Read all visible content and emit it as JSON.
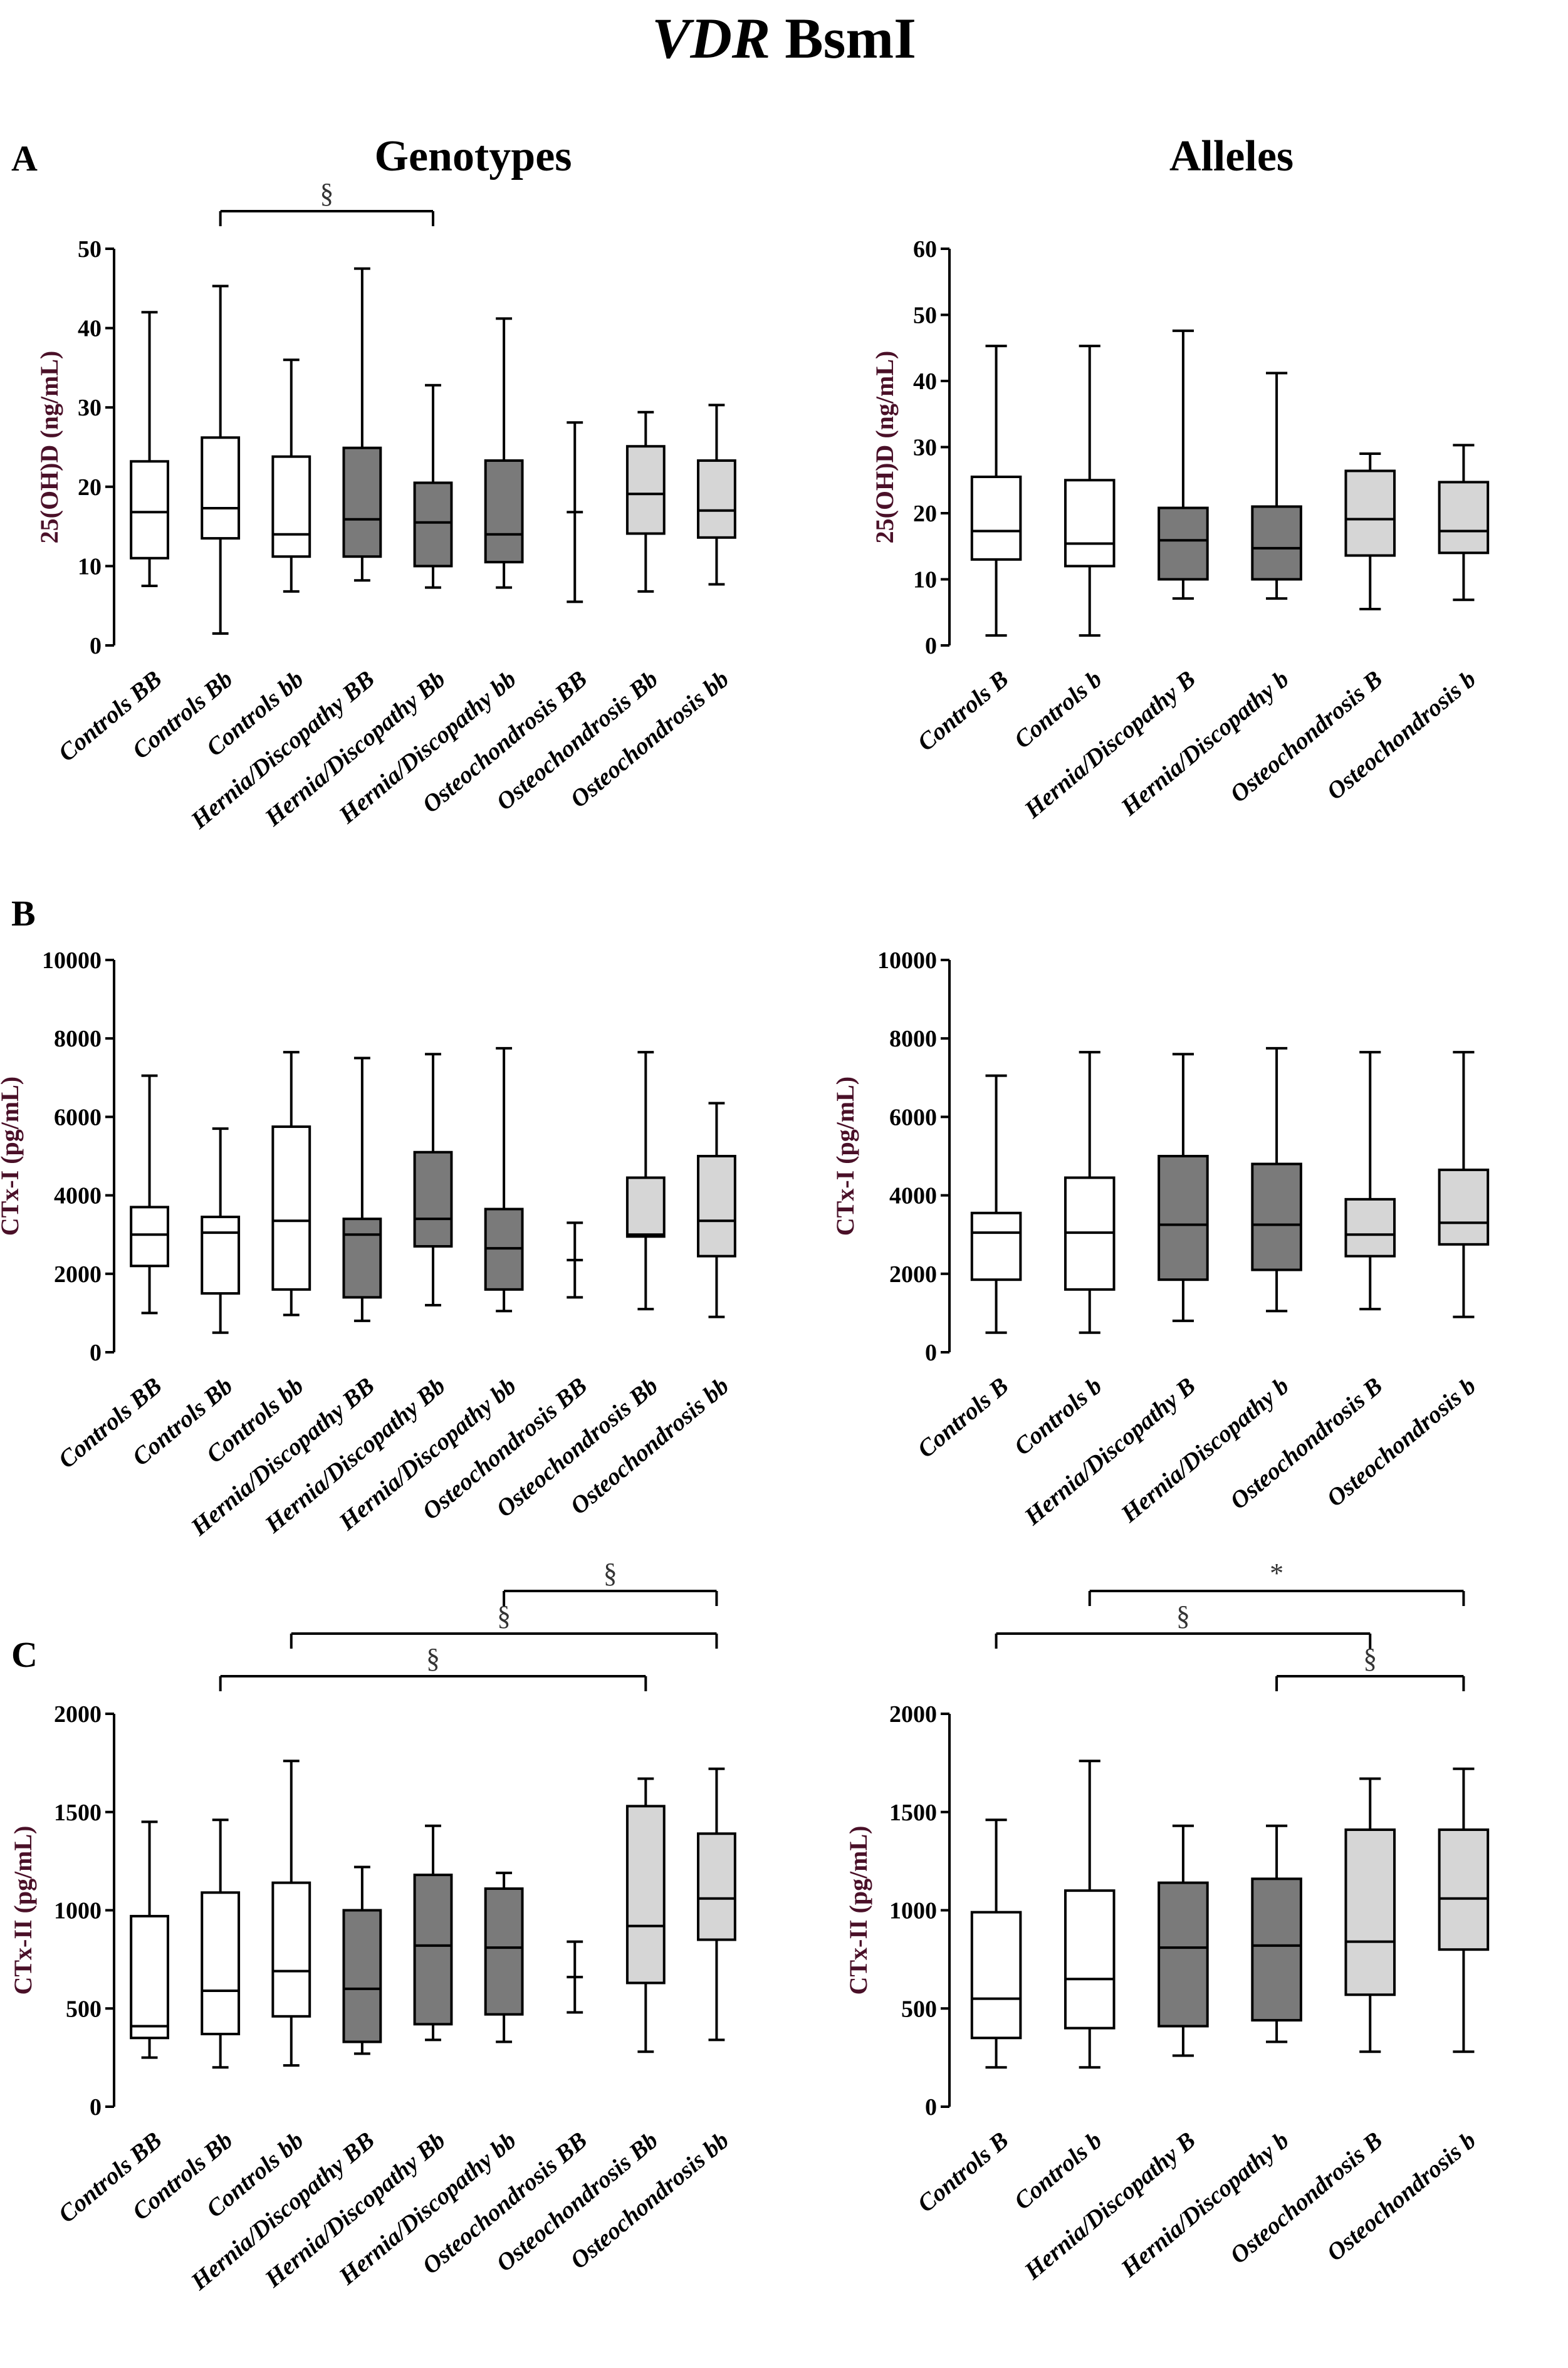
{
  "figure": {
    "title_gene": "VDR",
    "title_snp": "BsmI",
    "panel_labels": [
      "A",
      "B",
      "C"
    ],
    "column_titles": [
      "Genotypes",
      "Alleles"
    ]
  },
  "colors": {
    "control_fill": "#ffffff",
    "hernia_fill": "#7a7a7a",
    "osteo_fill": "#d6d6d6",
    "stroke": "#000000",
    "ylabel": "#4a1028",
    "significance": "#333333"
  },
  "chart_data": [
    {
      "id": "A-genotypes",
      "type": "boxplot",
      "row": 0,
      "col": 0,
      "ylabel": "25(OH)D (ng/mL)",
      "ylim": [
        0,
        50
      ],
      "yticks": [
        0,
        10,
        20,
        30,
        40,
        50
      ],
      "categories": [
        "Controls BB",
        "Controls Bb",
        "Controls bb",
        "Hernia/Discopathy BB",
        "Hernia/Discopathy Bb",
        "Hernia/Discopathy bb",
        "Osteochondrosis BB",
        "Osteochondrosis Bb",
        "Osteochondrosis bb"
      ],
      "groups": [
        "control",
        "control",
        "control",
        "hernia",
        "hernia",
        "hernia",
        "osteo",
        "osteo",
        "osteo"
      ],
      "boxes": [
        {
          "min": 7.5,
          "q1": 11,
          "median": 16.8,
          "q3": 23.2,
          "max": 42
        },
        {
          "min": 1.5,
          "q1": 13.5,
          "median": 17.3,
          "q3": 26.2,
          "max": 45.3
        },
        {
          "min": 6.8,
          "q1": 11.2,
          "median": 14,
          "q3": 23.8,
          "max": 36
        },
        {
          "min": 8.2,
          "q1": 11.2,
          "median": 15.9,
          "q3": 24.9,
          "max": 47.5
        },
        {
          "min": 7.3,
          "q1": 10,
          "median": 15.5,
          "q3": 20.5,
          "max": 32.8
        },
        {
          "min": 7.3,
          "q1": 10.5,
          "median": 14,
          "q3": 23.3,
          "max": 41.2
        },
        {
          "min": 5.5,
          "q1": 16.8,
          "median": 16.8,
          "q3": 16.8,
          "max": 28.1
        },
        {
          "min": 6.8,
          "q1": 14.1,
          "median": 19.1,
          "q3": 25.1,
          "max": 29.4
        },
        {
          "min": 7.7,
          "q1": 13.6,
          "median": 17,
          "q3": 23.3,
          "max": 30.3
        }
      ],
      "significance": [
        {
          "from": 1,
          "to": 4,
          "label": "§",
          "level": 0
        }
      ]
    },
    {
      "id": "A-alleles",
      "type": "boxplot",
      "row": 0,
      "col": 1,
      "ylabel": "25(OH)D (ng/mL)",
      "ylim": [
        0,
        60
      ],
      "yticks": [
        0,
        10,
        20,
        30,
        40,
        50,
        60
      ],
      "categories": [
        "Controls B",
        "Controls b",
        "Hernia/Discopathy B",
        "Hernia/Discopathy b",
        "Osteochondrosis B",
        "Osteochondrosis b"
      ],
      "groups": [
        "control",
        "control",
        "hernia",
        "hernia",
        "osteo",
        "osteo"
      ],
      "boxes": [
        {
          "min": 1.5,
          "q1": 13,
          "median": 17.3,
          "q3": 25.5,
          "max": 45.3
        },
        {
          "min": 1.5,
          "q1": 12,
          "median": 15.4,
          "q3": 25,
          "max": 45.3
        },
        {
          "min": 7.1,
          "q1": 10,
          "median": 15.9,
          "q3": 20.8,
          "max": 47.6
        },
        {
          "min": 7.1,
          "q1": 10,
          "median": 14.7,
          "q3": 21,
          "max": 41.2
        },
        {
          "min": 5.5,
          "q1": 13.6,
          "median": 19.1,
          "q3": 26.4,
          "max": 29
        },
        {
          "min": 6.9,
          "q1": 14,
          "median": 17.3,
          "q3": 24.7,
          "max": 30.3
        }
      ],
      "significance": []
    },
    {
      "id": "B-genotypes",
      "type": "boxplot",
      "row": 1,
      "col": 0,
      "ylabel": "CTx-I (pg/mL)",
      "ylim": [
        0,
        10000
      ],
      "yticks": [
        0,
        2000,
        4000,
        6000,
        8000,
        10000
      ],
      "categories": [
        "Controls BB",
        "Controls Bb",
        "Controls bb",
        "Hernia/Discopathy BB",
        "Hernia/Discopathy Bb",
        "Hernia/Discopathy bb",
        "Osteochondrosis BB",
        "Osteochondrosis Bb",
        "Osteochondrosis bb"
      ],
      "groups": [
        "control",
        "control",
        "control",
        "hernia",
        "hernia",
        "hernia",
        "osteo",
        "osteo",
        "osteo"
      ],
      "boxes": [
        {
          "min": 1000,
          "q1": 2200,
          "median": 3000,
          "q3": 3700,
          "max": 7050
        },
        {
          "min": 500,
          "q1": 1500,
          "median": 3050,
          "q3": 3450,
          "max": 5700
        },
        {
          "min": 950,
          "q1": 1600,
          "median": 3350,
          "q3": 5750,
          "max": 7650
        },
        {
          "min": 800,
          "q1": 1400,
          "median": 3000,
          "q3": 3400,
          "max": 7500
        },
        {
          "min": 1200,
          "q1": 2700,
          "median": 3400,
          "q3": 5100,
          "max": 7600
        },
        {
          "min": 1050,
          "q1": 1600,
          "median": 2650,
          "q3": 3650,
          "max": 7750
        },
        {
          "min": 1400,
          "q1": 2350,
          "median": 2350,
          "q3": 2350,
          "max": 3300
        },
        {
          "min": 1100,
          "q1": 2950,
          "median": 3000,
          "q3": 4450,
          "max": 7650
        },
        {
          "min": 900,
          "q1": 2450,
          "median": 3350,
          "q3": 5000,
          "max": 6350
        }
      ],
      "significance": []
    },
    {
      "id": "B-alleles",
      "type": "boxplot",
      "row": 1,
      "col": 1,
      "ylabel": "CTx-I (pg/mL)",
      "ylim": [
        0,
        10000
      ],
      "yticks": [
        0,
        2000,
        4000,
        6000,
        8000,
        10000
      ],
      "categories": [
        "Controls B",
        "Controls b",
        "Hernia/Discopathy B",
        "Hernia/Discopathy b",
        "Osteochondrosis B",
        "Osteochondrosis b"
      ],
      "groups": [
        "control",
        "control",
        "hernia",
        "hernia",
        "osteo",
        "osteo"
      ],
      "boxes": [
        {
          "min": 500,
          "q1": 1850,
          "median": 3050,
          "q3": 3550,
          "max": 7050
        },
        {
          "min": 500,
          "q1": 1600,
          "median": 3050,
          "q3": 4450,
          "max": 7650
        },
        {
          "min": 800,
          "q1": 1850,
          "median": 3250,
          "q3": 5000,
          "max": 7600
        },
        {
          "min": 1050,
          "q1": 2100,
          "median": 3250,
          "q3": 4800,
          "max": 7750
        },
        {
          "min": 1100,
          "q1": 2450,
          "median": 3000,
          "q3": 3900,
          "max": 7650
        },
        {
          "min": 900,
          "q1": 2750,
          "median": 3300,
          "q3": 4650,
          "max": 7650
        }
      ],
      "significance": []
    },
    {
      "id": "C-genotypes",
      "type": "boxplot",
      "row": 2,
      "col": 0,
      "ylabel": "CTx-II (pg/mL)",
      "ylim": [
        0,
        2000
      ],
      "yticks": [
        0,
        500,
        1000,
        1500,
        2000
      ],
      "categories": [
        "Controls BB",
        "Controls Bb",
        "Controls bb",
        "Hernia/Discopathy BB",
        "Hernia/Discopathy Bb",
        "Hernia/Discopathy bb",
        "Osteochondrosis BB",
        "Osteochondrosis Bb",
        "Osteochondrosis bb"
      ],
      "groups": [
        "control",
        "control",
        "control",
        "hernia",
        "hernia",
        "hernia",
        "osteo",
        "osteo",
        "osteo"
      ],
      "boxes": [
        {
          "min": 250,
          "q1": 350,
          "median": 410,
          "q3": 970,
          "max": 1450
        },
        {
          "min": 200,
          "q1": 370,
          "median": 590,
          "q3": 1090,
          "max": 1460
        },
        {
          "min": 210,
          "q1": 460,
          "median": 690,
          "q3": 1140,
          "max": 1760
        },
        {
          "min": 270,
          "q1": 330,
          "median": 600,
          "q3": 1000,
          "max": 1220
        },
        {
          "min": 340,
          "q1": 420,
          "median": 820,
          "q3": 1180,
          "max": 1430
        },
        {
          "min": 330,
          "q1": 470,
          "median": 810,
          "q3": 1110,
          "max": 1190
        },
        {
          "min": 480,
          "q1": 660,
          "median": 660,
          "q3": 660,
          "max": 840
        },
        {
          "min": 280,
          "q1": 630,
          "median": 920,
          "q3": 1530,
          "max": 1670
        },
        {
          "min": 340,
          "q1": 850,
          "median": 1060,
          "q3": 1390,
          "max": 1720
        }
      ],
      "significance": [
        {
          "from": 1,
          "to": 7,
          "label": "§",
          "level": 0
        },
        {
          "from": 2,
          "to": 8,
          "label": "§",
          "level": 1
        },
        {
          "from": 5,
          "to": 8,
          "label": "§",
          "level": 2
        }
      ]
    },
    {
      "id": "C-alleles",
      "type": "boxplot",
      "row": 2,
      "col": 1,
      "ylabel": "CTx-II (pg/mL)",
      "ylim": [
        0,
        2000
      ],
      "yticks": [
        0,
        500,
        1000,
        1500,
        2000
      ],
      "categories": [
        "Controls B",
        "Controls b",
        "Hernia/Discopathy B",
        "Hernia/Discopathy b",
        "Osteochondrosis B",
        "Osteochondrosis b"
      ],
      "groups": [
        "control",
        "control",
        "hernia",
        "hernia",
        "osteo",
        "osteo"
      ],
      "boxes": [
        {
          "min": 200,
          "q1": 350,
          "median": 550,
          "q3": 990,
          "max": 1460
        },
        {
          "min": 200,
          "q1": 400,
          "median": 650,
          "q3": 1100,
          "max": 1760
        },
        {
          "min": 260,
          "q1": 410,
          "median": 810,
          "q3": 1140,
          "max": 1430
        },
        {
          "min": 330,
          "q1": 440,
          "median": 820,
          "q3": 1160,
          "max": 1430
        },
        {
          "min": 280,
          "q1": 570,
          "median": 840,
          "q3": 1410,
          "max": 1670
        },
        {
          "min": 280,
          "q1": 800,
          "median": 1060,
          "q3": 1410,
          "max": 1720
        }
      ],
      "significance": [
        {
          "from": 3,
          "to": 5,
          "label": "§",
          "level": 0
        },
        {
          "from": 0,
          "to": 4,
          "label": "§",
          "level": 1
        },
        {
          "from": 1,
          "to": 5,
          "label": "*",
          "level": 2
        }
      ]
    }
  ]
}
